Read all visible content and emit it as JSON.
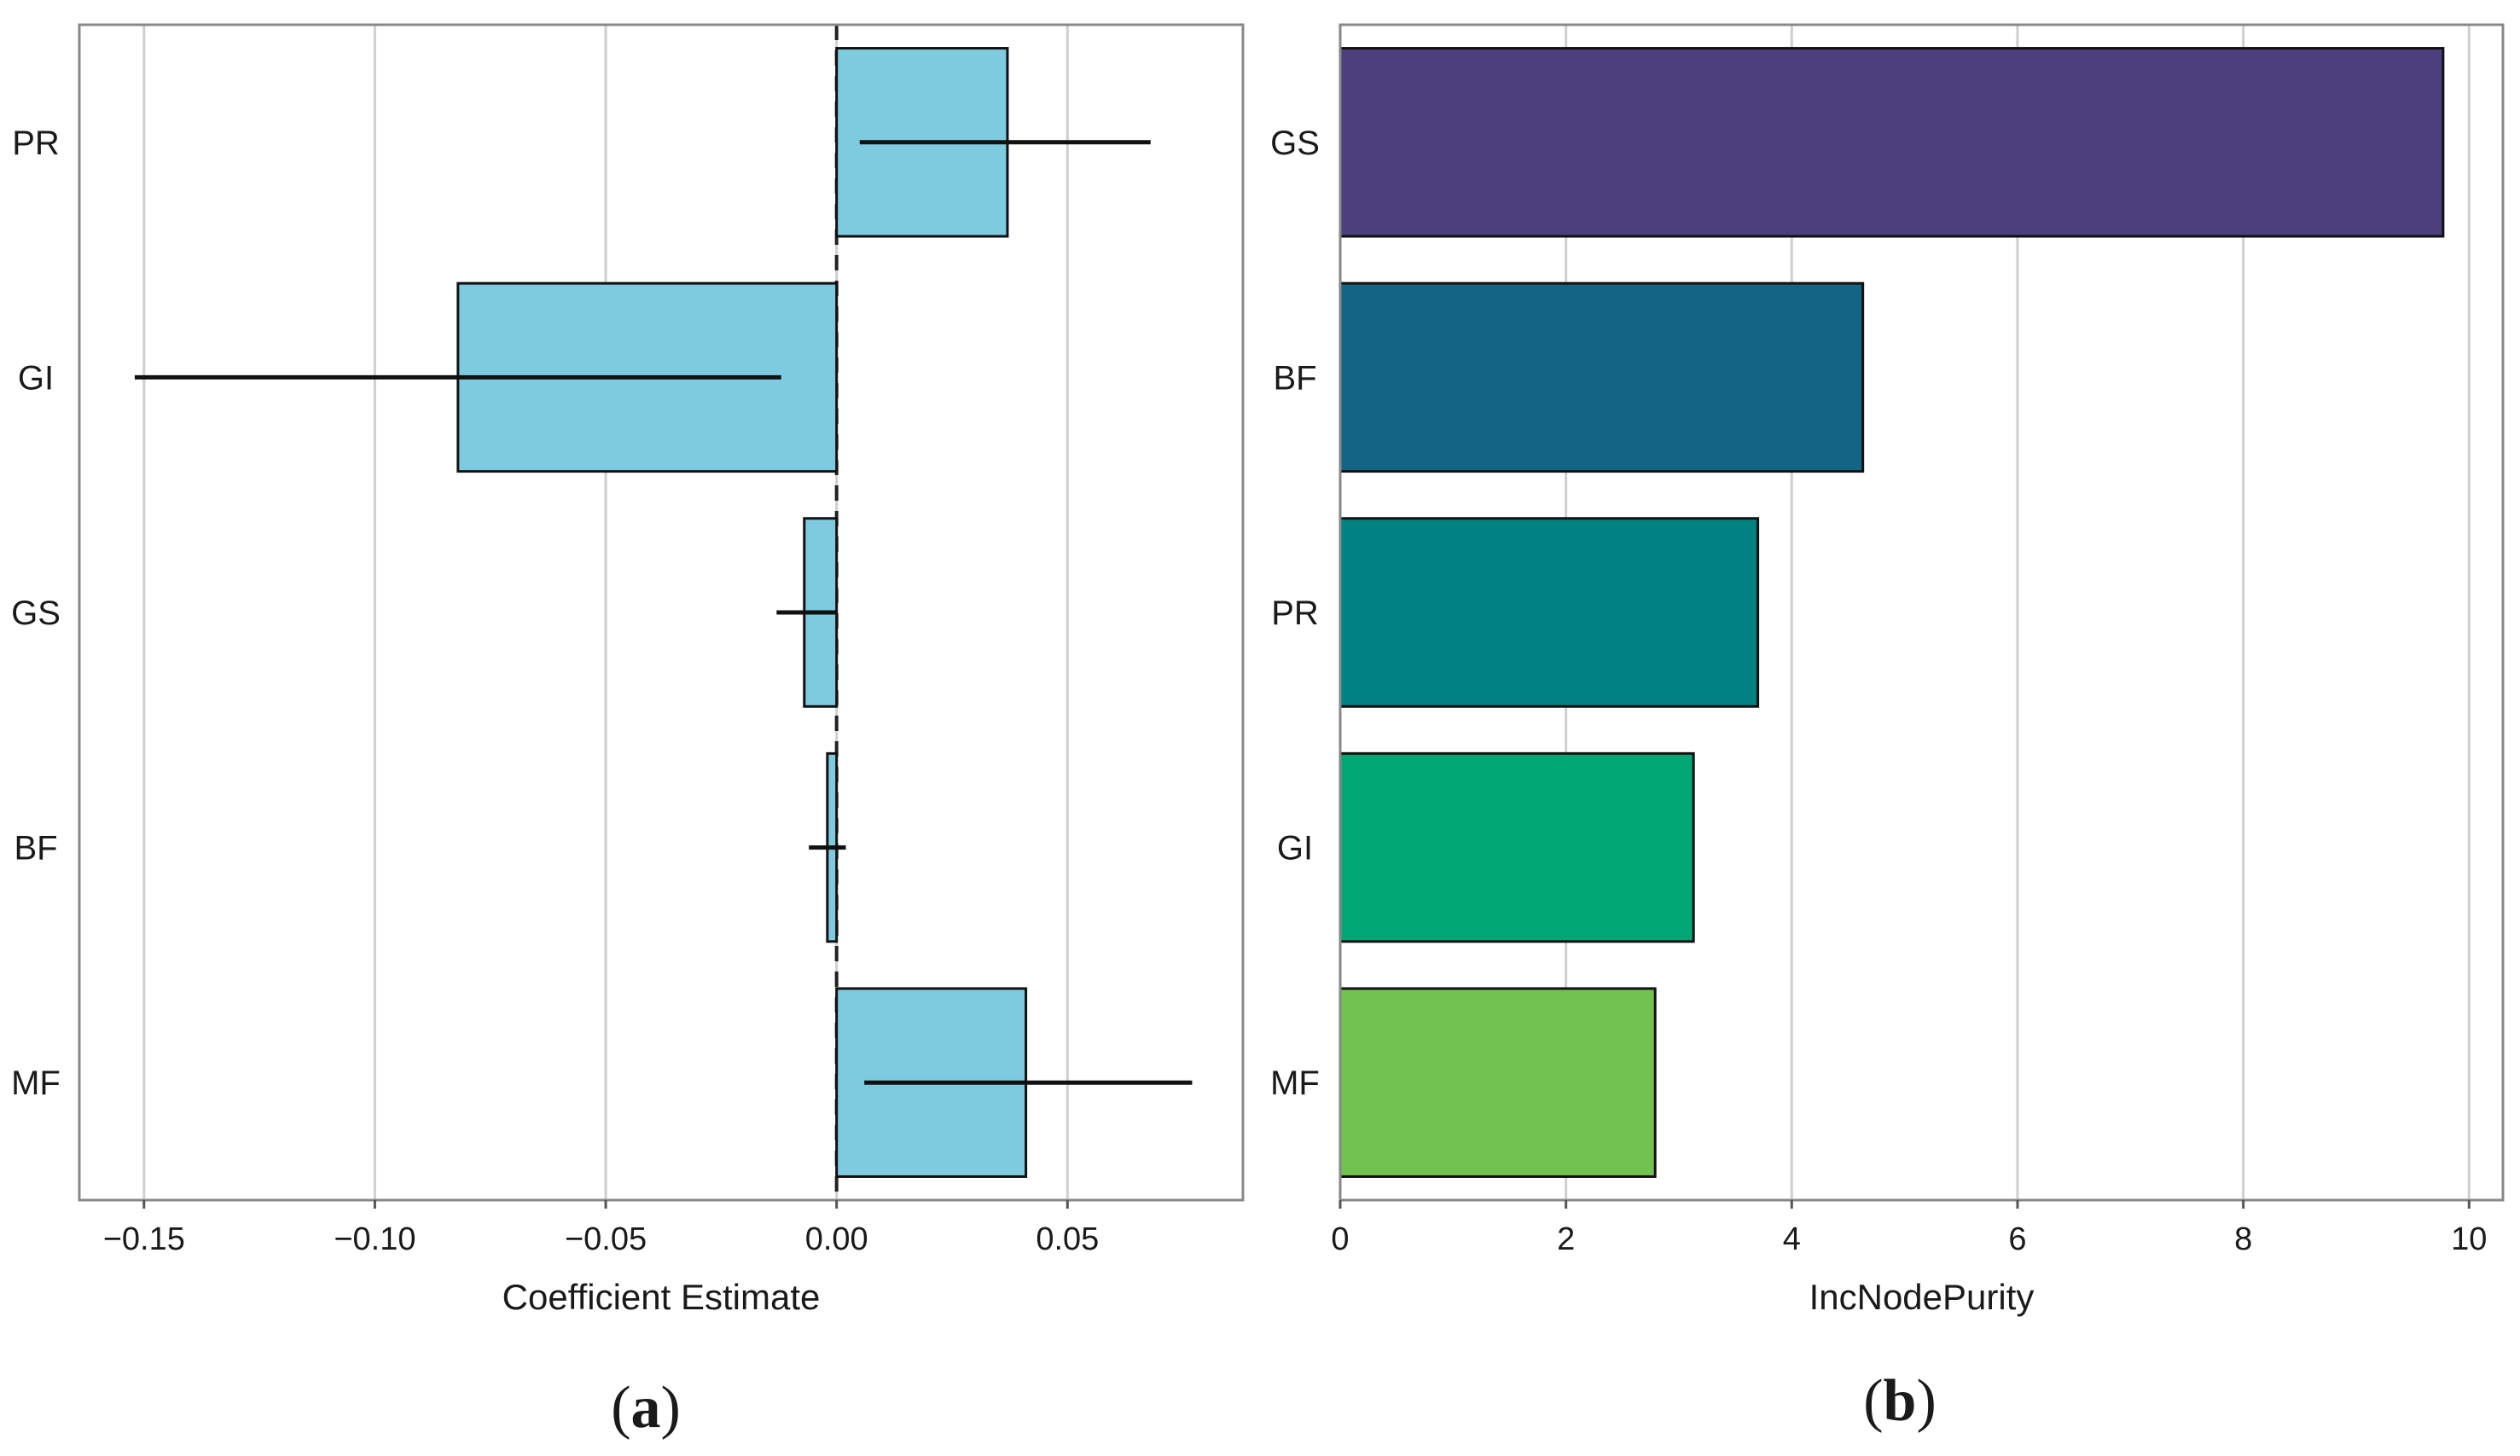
{
  "chart_data": [
    {
      "panel": "a",
      "type": "bar",
      "orientation": "horizontal",
      "categories": [
        "PR",
        "GI",
        "GS",
        "BF",
        "MF"
      ],
      "values": [
        0.037,
        -0.082,
        -0.007,
        -0.002,
        0.041
      ],
      "error_bars": [
        [
          0.005,
          0.068
        ],
        [
          -0.152,
          -0.012
        ],
        [
          -0.013,
          0.0
        ],
        [
          -0.006,
          0.002
        ],
        [
          0.006,
          0.077
        ]
      ],
      "xlim": [
        -0.164,
        0.088
      ],
      "xticks": [
        -0.15,
        -0.1,
        -0.05,
        0.0,
        0.05
      ],
      "xtick_labels": [
        "−0.15",
        "−0.10",
        "−0.05",
        "0.00",
        "0.05"
      ],
      "xlabel": "Coefficient Estimate",
      "ylabel": "",
      "reference_line": 0.0,
      "grid": "vertical",
      "bar_color": "#7ECBE0",
      "panel_label": {
        "open": "(",
        "letter": "a",
        "close": ")"
      }
    },
    {
      "panel": "b",
      "type": "bar",
      "orientation": "horizontal",
      "categories": [
        "GS",
        "BF",
        "PR",
        "GI",
        "MF"
      ],
      "values": [
        9.77,
        4.63,
        3.7,
        3.13,
        2.79
      ],
      "colors": [
        "#4C3F7E",
        "#136586",
        "#008282",
        "#00A774",
        "#70C34E"
      ],
      "xlim": [
        0,
        10.3
      ],
      "xticks": [
        0,
        2,
        4,
        6,
        8,
        10
      ],
      "xtick_labels": [
        "0",
        "2",
        "4",
        "6",
        "8",
        "10"
      ],
      "xlabel": "IncNodePurity",
      "ylabel": "",
      "grid": "vertical",
      "panel_label": {
        "open": "(",
        "letter": "b",
        "close": ")"
      }
    }
  ]
}
